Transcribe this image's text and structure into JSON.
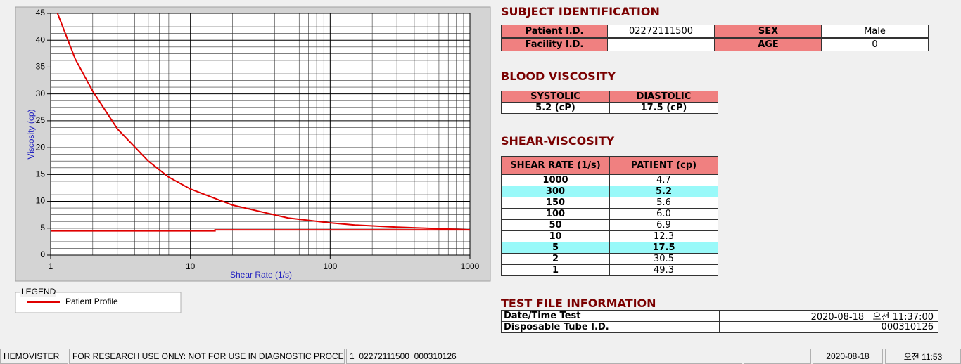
{
  "chart_data": {
    "type": "line",
    "x_label": "Shear Rate (1/s)",
    "y_label": "Viscosity (cp)",
    "xlim": [
      1,
      1000
    ],
    "ylim": [
      0,
      45
    ],
    "xticks": [
      1,
      10,
      100,
      1000
    ],
    "yticks": [
      0,
      5,
      10,
      15,
      20,
      25,
      30,
      35,
      40,
      45
    ],
    "log_x": true,
    "grid": true,
    "legend_title": "LEGEND",
    "series": [
      {
        "name": "Patient Profile",
        "color": "#e00000",
        "x": [
          1.12,
          1.5,
          2,
          3,
          5,
          7,
          10,
          20,
          50,
          100,
          150,
          300,
          1000
        ],
        "values": [
          45,
          36.5,
          30.5,
          23.5,
          17.5,
          14.5,
          12.3,
          9.3,
          6.9,
          6.0,
          5.6,
          5.2,
          4.7
        ]
      },
      {
        "color": "#e00000",
        "x": [
          1,
          15,
          15,
          1000
        ],
        "values": [
          4.5,
          4.5,
          4.7,
          4.7
        ]
      }
    ]
  },
  "subject_identification": {
    "title": "SUBJECT IDENTIFICATION",
    "cells": [
      {
        "label": "Patient I.D.",
        "value": "02272111500"
      },
      {
        "label": "SEX",
        "value": "Male"
      },
      {
        "label": "Facility I.D."
      },
      {
        "label": "AGE",
        "value": "0"
      }
    ]
  },
  "blood_viscosity": {
    "title": "BLOOD VISCOSITY",
    "headers": [
      "SYSTOLIC",
      "DIASTOLIC"
    ],
    "values": [
      "5.2 (cP)",
      "17.5 (cP)"
    ]
  },
  "shear_viscosity": {
    "title": "SHEAR-VISCOSITY",
    "headers": [
      "SHEAR RATE (1/s)",
      "PATIENT (cp)"
    ],
    "rows": [
      {
        "rate": "1000",
        "viscosity": "4.7"
      },
      {
        "rate": "300",
        "viscosity": "5.2",
        "highlight": true
      },
      {
        "rate": "150",
        "viscosity": "5.6"
      },
      {
        "rate": "100",
        "viscosity": "6.0"
      },
      {
        "rate": "50",
        "viscosity": "6.9"
      },
      {
        "rate": "10",
        "viscosity": "12.3"
      },
      {
        "rate": "5",
        "viscosity": "17.5",
        "highlight": true
      },
      {
        "rate": "2",
        "viscosity": "30.5"
      },
      {
        "rate": "1",
        "viscosity": "49.3"
      }
    ]
  },
  "test_file": {
    "title": "TEST FILE INFORMATION",
    "rows": [
      {
        "label": "Date/Time Test",
        "value": "2020-08-18   오전 11:37:00"
      },
      {
        "label": "Disposable Tube I.D.",
        "value": "000310126"
      }
    ]
  },
  "status_bar": [
    "HEMOVISTER",
    "FOR RESEARCH USE ONLY: NOT FOR USE IN DIAGNOSTIC PROCEDURES",
    "1  02272111500  000310126",
    null,
    "2020-08-18",
    "오전 11:53"
  ]
}
